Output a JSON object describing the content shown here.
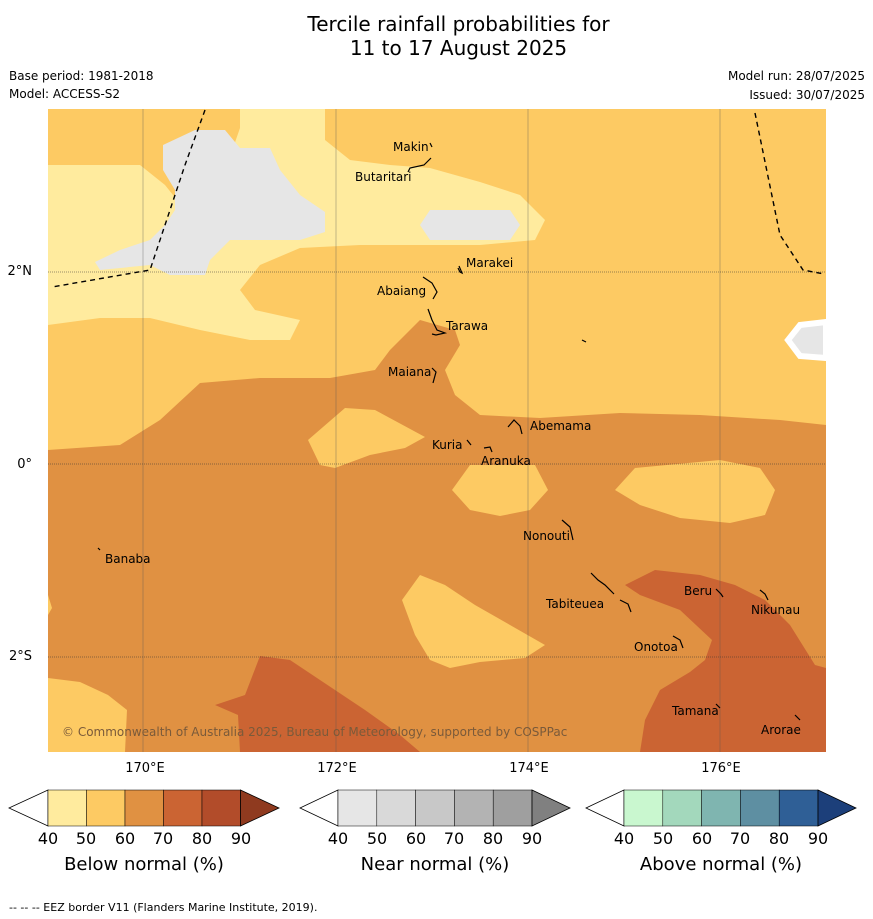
{
  "title_line1": "Tercile rainfall probabilities for",
  "title_line2": "11 to 17 August 2025",
  "base_period": "Base period: 1981-2018",
  "model": "Model: ACCESS-S2",
  "model_run": "Model run: 28/07/2025",
  "issued": "Issued: 30/07/2025",
  "copyright": "© Commonwealth of Australia 2025, Bureau of Meteorology, supported by COSPPac",
  "footer": "-- -- -- EEZ border V11 (Flanders Marine Institute, 2019).",
  "lat_labels": [
    "2°N",
    "0°",
    "2°S"
  ],
  "lon_labels": [
    "170°E",
    "172°E",
    "174°E",
    "176°E"
  ],
  "places": {
    "makin": "Makin",
    "butaritari": "Butaritari",
    "marakei": "Marakei",
    "abaiang": "Abaiang",
    "tarawa": "Tarawa",
    "maiana": "Maiana",
    "abemama": "Abemama",
    "kuria": "Kuria",
    "aranuka": "Aranuka",
    "nonouti": "Nonouti",
    "banaba": "Banaba",
    "beru": "Beru",
    "tabiteuea": "Tabiteuea",
    "nikunau": "Nikunau",
    "onotoa": "Onotoa",
    "tamana": "Tamana",
    "arorae": "Arorae"
  },
  "colorbars": {
    "below": {
      "label": "Below normal (%)",
      "ticks": [
        "40",
        "50",
        "60",
        "70",
        "80",
        "90"
      ],
      "colors": [
        "#ffeb9e",
        "#fdca63",
        "#e09142",
        "#cb6433",
        "#b24c2a",
        "#8f3a1f"
      ]
    },
    "near": {
      "label": "Near normal (%)",
      "ticks": [
        "40",
        "50",
        "60",
        "70",
        "80",
        "90"
      ],
      "colors": [
        "#e6e6e6",
        "#d9d9d9",
        "#c8c8c8",
        "#b3b3b3",
        "#9f9f9f",
        "#808080"
      ]
    },
    "above": {
      "label": "Above normal (%)",
      "ticks": [
        "40",
        "50",
        "60",
        "70",
        "80",
        "90"
      ],
      "colors": [
        "#c9f7cf",
        "#a3d8bc",
        "#7fb5b0",
        "#5e8fa2",
        "#2f5f96",
        "#1c3f7a"
      ]
    }
  }
}
